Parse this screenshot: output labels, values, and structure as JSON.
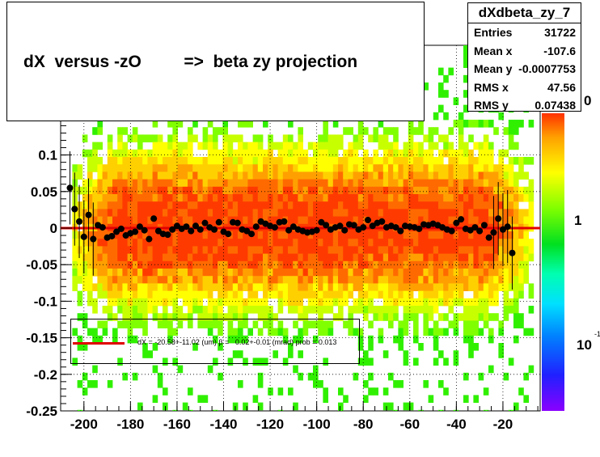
{
  "title": {
    "text": "dX  versus -zO         =>  beta zy projection"
  },
  "stats": {
    "name": "dXdbeta_zy_7",
    "rows": [
      {
        "label": "Entries",
        "value": "31722"
      },
      {
        "label": "Mean x",
        "value": "-107.6"
      },
      {
        "label": "Mean y",
        "value": "-0.0007753"
      },
      {
        "label": "RMS x",
        "value": "47.56"
      },
      {
        "label": "RMS y",
        "value": "0.07438"
      }
    ]
  },
  "legend": {
    "text": "dX = -20.58+-11.02 (um) β =   0.02+-0.01 (mrad) prob = 0.013"
  },
  "colors": {
    "fit_line": "#e00000",
    "markers": "#000000"
  },
  "chart_data": {
    "type": "scatter",
    "title": "dX  versus -zO         =>  beta zy projection",
    "xlabel": "",
    "ylabel": "",
    "xlim": [
      -210,
      -4
    ],
    "ylim": [
      -0.25,
      0.25
    ],
    "x_ticks": [
      -200,
      -180,
      -160,
      -140,
      -120,
      -100,
      -80,
      -60,
      -40,
      -20
    ],
    "y_ticks": [
      0.1,
      0.05,
      0,
      -0.05,
      -0.1,
      -0.15,
      -0.2,
      -0.25
    ],
    "color_scale_ticks": [
      "0",
      "1",
      "10"
    ],
    "color_scale_exponent": "-1",
    "grid": true,
    "fit": {
      "intercept": -2.058e-05,
      "slope": 2e-08
    },
    "series": [
      {
        "x": [
          -206,
          -204,
          -202,
          -200,
          -198,
          -196,
          -194,
          -192,
          -190,
          -188,
          -186,
          -184,
          -182,
          -180,
          -178,
          -176,
          -174,
          -172,
          -170,
          -168,
          -166,
          -164,
          -162,
          -160,
          -158,
          -156,
          -154,
          -152,
          -150,
          -148,
          -146,
          -144,
          -142,
          -140,
          -138,
          -136,
          -134,
          -132,
          -130,
          -128,
          -126,
          -124,
          -122,
          -120,
          -118,
          -116,
          -114,
          -112,
          -110,
          -108,
          -106,
          -104,
          -102,
          -100,
          -98,
          -96,
          -94,
          -92,
          -90,
          -88,
          -86,
          -84,
          -82,
          -80,
          -78,
          -76,
          -74,
          -72,
          -70,
          -68,
          -66,
          -64,
          -62,
          -60,
          -58,
          -56,
          -54,
          -52,
          -50,
          -48,
          -46,
          -44,
          -42,
          -40,
          -38,
          -36,
          -34,
          -32,
          -30,
          -28,
          -26,
          -24,
          -22,
          -20,
          -18,
          -16
        ],
        "y": [
          0.055,
          0.026,
          0.009,
          -0.012,
          0.018,
          -0.015,
          0.004,
          0.001,
          -0.013,
          -0.011,
          -0.005,
          -0.001,
          -0.01,
          -0.007,
          -0.005,
          0.002,
          -0.003,
          -0.015,
          0.013,
          -0.004,
          -0.008,
          -0.009,
          -0.002,
          0.003,
          -0.001,
          0.002,
          -0.004,
          0.003,
          -0.002,
          0.007,
          0.001,
          -0.002,
          0.008,
          -0.005,
          -0.008,
          0.008,
          0.007,
          -0.002,
          -0.004,
          -0.008,
          0.002,
          0.009,
          0.006,
          0.003,
          0.001,
          0.008,
          0.009,
          -0.003,
          0.002,
          -0.002,
          -0.004,
          -0.006,
          -0.005,
          -0.003,
          0.008,
          0.004,
          -0.002,
          0.001,
          0.003,
          -0.003,
          0.005,
          0.004,
          -0.002,
          0.001,
          0.011,
          0.003,
          0.007,
          0.009,
          0.001,
          0.003,
          0.001,
          -0.004,
          0.003,
          0.002,
          0.001,
          -0.001,
          0.005,
          0.004,
          0.006,
          0.004,
          0.001,
          -0.002,
          -0.004,
          0.007,
          0.012,
          -0.001,
          -0.003,
          0.001,
          -0.004,
          0.004,
          -0.013,
          -0.006,
          0.013,
          -0.002,
          0.002,
          -0.034
        ]
      }
    ]
  }
}
